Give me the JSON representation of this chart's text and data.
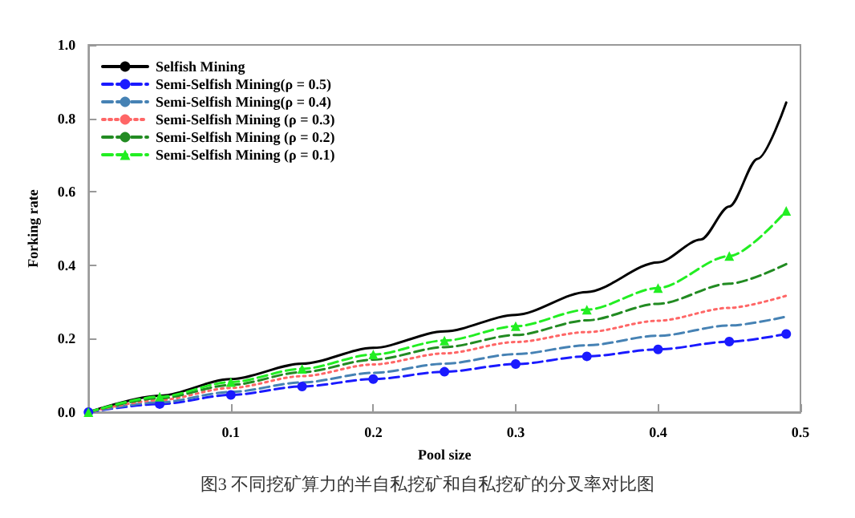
{
  "chart_data": {
    "type": "line",
    "title": "图3 不同挖矿算力的半自私挖矿和自私挖矿的分叉率对比图",
    "xlabel": "Pool size",
    "ylabel": "Forking rate",
    "xlim": [
      0,
      0.5
    ],
    "ylim": [
      0,
      1
    ],
    "xticks": [
      {
        "value": 0,
        "label": null
      },
      0.1,
      0.2,
      0.3,
      0.4,
      0.5
    ],
    "yticks": [
      {
        "value": 0,
        "label": "0.0"
      },
      0.2,
      0.4,
      0.6,
      0.8,
      {
        "value": 1,
        "label": "1.0"
      }
    ],
    "grid": false,
    "legend": "top left",
    "x": [
      0,
      0.05,
      0.1,
      0.15,
      0.2,
      0.25,
      0.3,
      0.35,
      0.4,
      0.45,
      0.49
    ],
    "series": [
      {
        "name": "Selfish Mining",
        "color": "#000000",
        "line_style": "solid",
        "marker": "none",
        "x": [
          0,
          0.05,
          0.1,
          0.15,
          0.2,
          0.25,
          0.3,
          0.35,
          0.4,
          0.43,
          0.45,
          0.47,
          0.49
        ],
        "values": [
          0,
          0.045,
          0.09,
          0.132,
          0.175,
          0.22,
          0.265,
          0.327,
          0.408,
          0.47,
          0.56,
          0.69,
          0.843
        ]
      },
      {
        "name": "Semi-Selfish Mining(ρ = 0.5)",
        "color": "#1a1aff",
        "line_style": "dashed",
        "marker": "circle",
        "values": [
          0,
          0.022,
          0.047,
          0.07,
          0.09,
          0.11,
          0.131,
          0.152,
          0.171,
          0.192,
          0.213
        ]
      },
      {
        "name": "Semi-Selfish Mining(ρ = 0.4)",
        "color": "#4682b4",
        "line_style": "dashed",
        "marker": "none",
        "values": [
          0,
          0.027,
          0.055,
          0.081,
          0.107,
          0.132,
          0.158,
          0.182,
          0.208,
          0.236,
          0.26
        ]
      },
      {
        "name": "Semi-Selfish Mining (ρ = 0.3)",
        "color": "#ff6666",
        "line_style": "dotted",
        "marker": "none",
        "values": [
          0,
          0.033,
          0.066,
          0.098,
          0.13,
          0.16,
          0.191,
          0.218,
          0.249,
          0.284,
          0.317
        ]
      },
      {
        "name": "Semi-Selfish Mining (ρ = 0.2)",
        "color": "#228b22",
        "line_style": "dashed",
        "marker": "none",
        "values": [
          0,
          0.038,
          0.074,
          0.109,
          0.143,
          0.177,
          0.21,
          0.25,
          0.295,
          0.35,
          0.403
        ]
      },
      {
        "name": "Semi-Selfish Mining (ρ = 0.1)",
        "color": "#22ee22",
        "line_style": "dashed",
        "marker": "triangle",
        "values": [
          0,
          0.042,
          0.082,
          0.118,
          0.157,
          0.195,
          0.234,
          0.279,
          0.338,
          0.425,
          0.548
        ]
      }
    ]
  }
}
